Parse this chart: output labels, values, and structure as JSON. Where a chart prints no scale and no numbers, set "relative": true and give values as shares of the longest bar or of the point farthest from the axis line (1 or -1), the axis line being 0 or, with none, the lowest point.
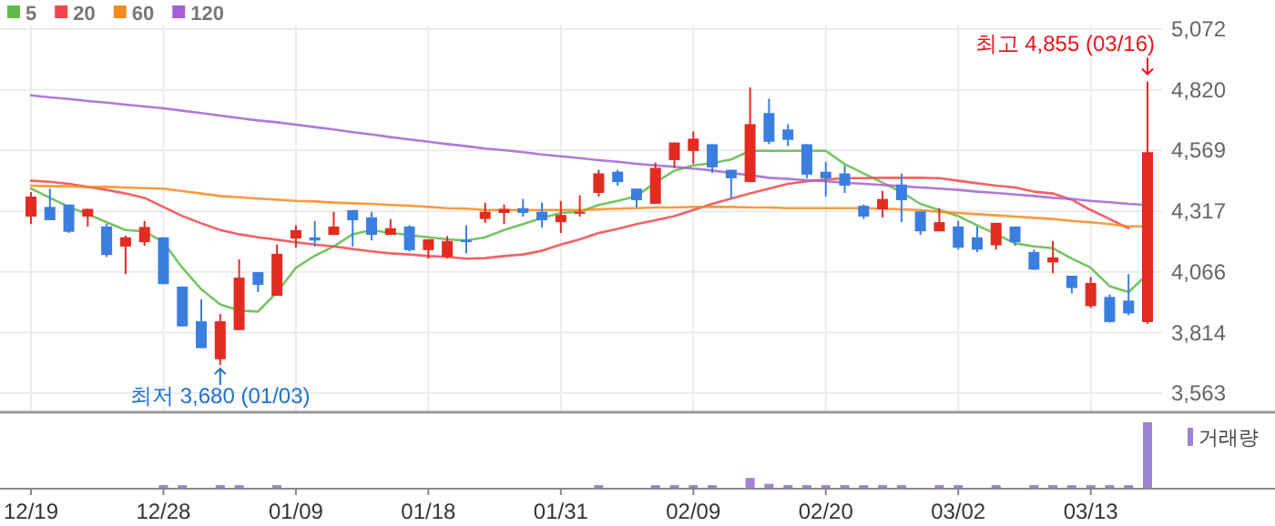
{
  "chart_data": [
    {
      "type": "candlestick",
      "categories": [
        null,
        null,
        null,
        null,
        null,
        null,
        null,
        null,
        null,
        null,
        null,
        null,
        null,
        null,
        null,
        null,
        null,
        null,
        null,
        null,
        null,
        null,
        null,
        null,
        null,
        null,
        null,
        null,
        null,
        null,
        null,
        null,
        null,
        null,
        null,
        null,
        null,
        null,
        null,
        null,
        null,
        null,
        null,
        null,
        null,
        null,
        null,
        null,
        null,
        null,
        null,
        null,
        null,
        null,
        null,
        null,
        null,
        null,
        null,
        null
      ],
      "tick_labels": "y",
      "ylim": [
        3488,
        5087
      ],
      "yticks": [
        {
          "value": 3563,
          "label": "3,563"
        },
        {
          "value": 3814,
          "label": "3,814"
        },
        {
          "value": 4066,
          "label": "4,066"
        },
        {
          "value": 4317,
          "label": "4,317"
        },
        {
          "value": 4569,
          "label": "4,569"
        },
        {
          "value": 4820,
          "label": "4,820"
        },
        {
          "value": 5072,
          "label": "5,072"
        }
      ],
      "grid": true,
      "legend": "top left",
      "ohlc": [
        [
          4295,
          4396,
          4264,
          4378
        ],
        [
          4335,
          4411,
          4280,
          4280
        ],
        [
          4345,
          4345,
          4227,
          4232
        ],
        [
          4295,
          4327,
          4254,
          4327
        ],
        [
          4254,
          4264,
          4128,
          4136
        ],
        [
          4171,
          4216,
          4057,
          4209
        ],
        [
          4189,
          4277,
          4174,
          4252
        ],
        [
          4209,
          4209,
          4015,
          4015
        ],
        [
          4005,
          4005,
          3840,
          3840
        ],
        [
          3861,
          3952,
          3750,
          3750
        ],
        [
          3704,
          3891,
          3680,
          3861
        ],
        [
          3825,
          4118,
          3825,
          4042
        ],
        [
          4065,
          4065,
          3982,
          4012
        ],
        [
          3967,
          4179,
          3967,
          4141
        ],
        [
          4204,
          4259,
          4166,
          4239
        ],
        [
          4209,
          4277,
          4171,
          4196
        ],
        [
          4219,
          4315,
          4219,
          4254
        ],
        [
          4322,
          4322,
          4171,
          4280
        ],
        [
          4292,
          4315,
          4196,
          4219
        ],
        [
          4219,
          4285,
          4219,
          4247
        ],
        [
          4254,
          4259,
          4151,
          4156
        ],
        [
          4156,
          4201,
          4121,
          4201
        ],
        [
          4128,
          4214,
          4121,
          4194
        ],
        [
          4199,
          4259,
          4143,
          4189
        ],
        [
          4285,
          4353,
          4269,
          4315
        ],
        [
          4310,
          4345,
          4264,
          4327
        ],
        [
          4330,
          4368,
          4295,
          4310
        ],
        [
          4315,
          4353,
          4249,
          4280
        ],
        [
          4272,
          4360,
          4227,
          4302
        ],
        [
          4307,
          4383,
          4295,
          4315
        ],
        [
          4393,
          4489,
          4378,
          4474
        ],
        [
          4481,
          4489,
          4423,
          4438
        ],
        [
          4411,
          4411,
          4333,
          4363
        ],
        [
          4348,
          4519,
          4348,
          4497
        ],
        [
          4529,
          4602,
          4497,
          4602
        ],
        [
          4567,
          4648,
          4514,
          4618
        ],
        [
          4595,
          4595,
          4476,
          4499
        ],
        [
          4489,
          4489,
          4370,
          4454
        ],
        [
          4438,
          4830,
          4438,
          4678
        ],
        [
          4724,
          4784,
          4595,
          4605
        ],
        [
          4656,
          4678,
          4587,
          4613
        ],
        [
          4595,
          4595,
          4454,
          4469
        ],
        [
          4481,
          4522,
          4378,
          4454
        ],
        [
          4474,
          4507,
          4393,
          4423
        ],
        [
          4340,
          4345,
          4285,
          4295
        ],
        [
          4325,
          4401,
          4292,
          4368
        ],
        [
          4428,
          4474,
          4272,
          4363
        ],
        [
          4317,
          4317,
          4219,
          4234
        ],
        [
          4234,
          4330,
          4234,
          4272
        ],
        [
          4254,
          4277,
          4158,
          4166
        ],
        [
          4209,
          4254,
          4148,
          4158
        ],
        [
          4176,
          4269,
          4158,
          4269
        ],
        [
          4254,
          4254,
          4174,
          4189
        ],
        [
          4148,
          4158,
          4075,
          4075
        ],
        [
          4105,
          4194,
          4060,
          4126
        ],
        [
          4050,
          4050,
          3977,
          3999
        ],
        [
          3924,
          4045,
          3916,
          4020
        ],
        [
          3962,
          3972,
          3856,
          3858
        ],
        [
          3947,
          4057,
          3886,
          3894
        ],
        [
          3858,
          4855,
          3851,
          4562
        ]
      ],
      "colors": [
        "#e32b22",
        "#3a7fe0",
        "#3a7fe0",
        "#e32b22",
        "#3a7fe0",
        "#e32b22",
        "#e32b22",
        "#3a7fe0",
        "#3a7fe0",
        "#3a7fe0",
        "#e32b22",
        "#e32b22",
        "#3a7fe0",
        "#e32b22",
        "#e32b22",
        "#3a7fe0",
        "#e32b22",
        "#3a7fe0",
        "#3a7fe0",
        "#e32b22",
        "#3a7fe0",
        "#e32b22",
        "#e32b22",
        "#3a7fe0",
        "#e32b22",
        "#e32b22",
        "#3a7fe0",
        "#3a7fe0",
        "#e32b22",
        "#e32b22",
        "#e32b22",
        "#3a7fe0",
        "#3a7fe0",
        "#e32b22",
        "#e32b22",
        "#e32b22",
        "#3a7fe0",
        "#3a7fe0",
        "#e32b22",
        "#3a7fe0",
        "#3a7fe0",
        "#3a7fe0",
        "#3a7fe0",
        "#3a7fe0",
        "#3a7fe0",
        "#e32b22",
        "#3a7fe0",
        "#3a7fe0",
        "#e32b22",
        "#3a7fe0",
        "#3a7fe0",
        "#e32b22",
        "#3a7fe0",
        "#3a7fe0",
        "#e32b22",
        "#3a7fe0",
        "#e32b22",
        "#3a7fe0",
        "#3a7fe0",
        "#e32b22"
      ],
      "series": [
        {
          "type": "line",
          "name": "5",
          "color": "#5dbb46",
          "values": [
            4411,
            4373,
            4335,
            4305,
            4272,
            4239,
            4234,
            4189,
            4083,
            3994,
            3931,
            3906,
            3901,
            3982,
            4083,
            4133,
            4171,
            4222,
            4239,
            4227,
            4219,
            4209,
            4201,
            4196,
            4209,
            4239,
            4264,
            4290,
            4310,
            4315,
            4343,
            4360,
            4380,
            4436,
            4486,
            4507,
            4517,
            4532,
            4567,
            4567,
            4567,
            4567,
            4567,
            4512,
            4474,
            4436,
            4396,
            4348,
            4322,
            4297,
            4259,
            4222,
            4184,
            4171,
            4164,
            4121,
            4083,
            4007,
            3982,
            4057
          ]
        },
        {
          "type": "line",
          "name": "20",
          "color": "#f0464b",
          "values": [
            4444,
            4439,
            4431,
            4418,
            4406,
            4391,
            4373,
            4335,
            4297,
            4267,
            4239,
            4222,
            4209,
            4199,
            4189,
            4179,
            4171,
            4161,
            4151,
            4143,
            4138,
            4131,
            4128,
            4121,
            4123,
            4131,
            4138,
            4153,
            4179,
            4201,
            4227,
            4244,
            4264,
            4280,
            4297,
            4322,
            4348,
            4370,
            4391,
            4411,
            4431,
            4441,
            4449,
            4454,
            4454,
            4456,
            4456,
            4456,
            4454,
            4444,
            4433,
            4423,
            4416,
            4398,
            4391,
            4365,
            4322,
            4285,
            4247,
            null
          ]
        },
        {
          "type": "line",
          "name": "60",
          "color": "#f7891e",
          "values": [
            4423,
            4421,
            4421,
            4418,
            4418,
            4416,
            4413,
            4411,
            4401,
            4391,
            4380,
            4375,
            4370,
            4365,
            4360,
            4358,
            4353,
            4350,
            4348,
            4343,
            4340,
            4335,
            4330,
            4328,
            4322,
            4322,
            4322,
            4322,
            4322,
            4322,
            4325,
            4328,
            4330,
            4333,
            4333,
            4335,
            4335,
            4335,
            4333,
            4333,
            4330,
            4330,
            4330,
            4330,
            4330,
            4328,
            4325,
            4322,
            4315,
            4310,
            4305,
            4300,
            4295,
            4290,
            4285,
            4277,
            4272,
            4264,
            4254,
            4254
          ]
        },
        {
          "type": "line",
          "name": "120",
          "color": "#a561d1",
          "values": [
            4797,
            4789,
            4782,
            4774,
            4767,
            4759,
            4751,
            4744,
            4734,
            4724,
            4714,
            4703,
            4693,
            4686,
            4676,
            4666,
            4656,
            4645,
            4635,
            4625,
            4615,
            4605,
            4595,
            4587,
            4577,
            4570,
            4562,
            4552,
            4545,
            4537,
            4529,
            4522,
            4514,
            4507,
            4502,
            4494,
            4486,
            4476,
            4466,
            4456,
            4451,
            4446,
            4441,
            4436,
            4431,
            4426,
            4421,
            4416,
            4411,
            4406,
            4398,
            4393,
            4386,
            4380,
            4373,
            4368,
            4360,
            4355,
            4348,
            4343
          ]
        }
      ],
      "annotations": [
        "최고 4,855 (03/16)",
        "최저 3,680 (01/03)"
      ]
    },
    {
      "type": "bar",
      "relative": true,
      "legend": "top right",
      "categories": [
        "12/19",
        null,
        null,
        null,
        null,
        null,
        null,
        "12/28",
        null,
        null,
        null,
        null,
        null,
        null,
        "01/09",
        null,
        null,
        null,
        null,
        null,
        null,
        "01/18",
        null,
        null,
        null,
        null,
        null,
        null,
        "01/31",
        null,
        null,
        null,
        null,
        null,
        null,
        "02/09",
        null,
        null,
        null,
        null,
        null,
        null,
        "02/20",
        null,
        null,
        null,
        null,
        null,
        null,
        "03/02",
        null,
        null,
        null,
        null,
        null,
        null,
        "03/13",
        null,
        null,
        null
      ],
      "series": [
        {
          "name": "거래량",
          "color": "#9b83d3",
          "values": [
            null,
            null,
            null,
            null,
            null,
            null,
            null,
            0.04,
            0.04,
            null,
            0.04,
            0.04,
            null,
            0.04,
            null,
            null,
            null,
            null,
            null,
            null,
            null,
            null,
            null,
            null,
            null,
            null,
            null,
            null,
            null,
            null,
            0.04,
            null,
            null,
            0.04,
            0.04,
            0.04,
            0.04,
            null,
            0.15,
            0.06,
            0.04,
            0.04,
            0.04,
            0.04,
            0.04,
            0.04,
            0.04,
            null,
            0.04,
            0.04,
            null,
            0.04,
            null,
            0.04,
            0.04,
            0.04,
            0.04,
            0.04,
            0.04,
            1
          ]
        }
      ]
    }
  ]
}
